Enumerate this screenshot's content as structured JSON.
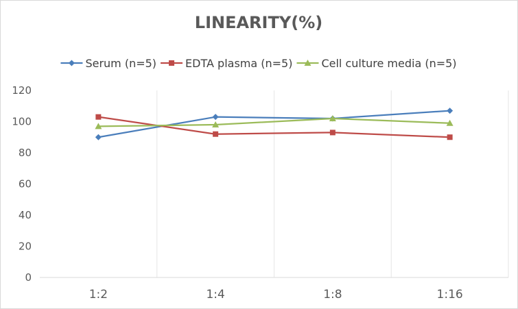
{
  "chart_data": {
    "type": "line",
    "title": "LINEARITY(%)",
    "categories": [
      "1:2",
      "1:4",
      "1:8",
      "1:16"
    ],
    "series": [
      {
        "name": "Serum (n=5)",
        "values": [
          90,
          103,
          102,
          107
        ],
        "color": "#4a7ebb",
        "marker": "diamond"
      },
      {
        "name": "EDTA plasma (n=5)",
        "values": [
          103,
          92,
          93,
          90
        ],
        "color": "#be4b48",
        "marker": "square"
      },
      {
        "name": "Cell culture media (n=5)",
        "values": [
          97,
          98,
          102,
          99
        ],
        "color": "#9bbb59",
        "marker": "triangle"
      }
    ],
    "ylim": [
      0,
      120
    ],
    "yticks": [
      0,
      20,
      40,
      60,
      80,
      100,
      120
    ],
    "grid": "vertical category separators",
    "legend": "top"
  }
}
